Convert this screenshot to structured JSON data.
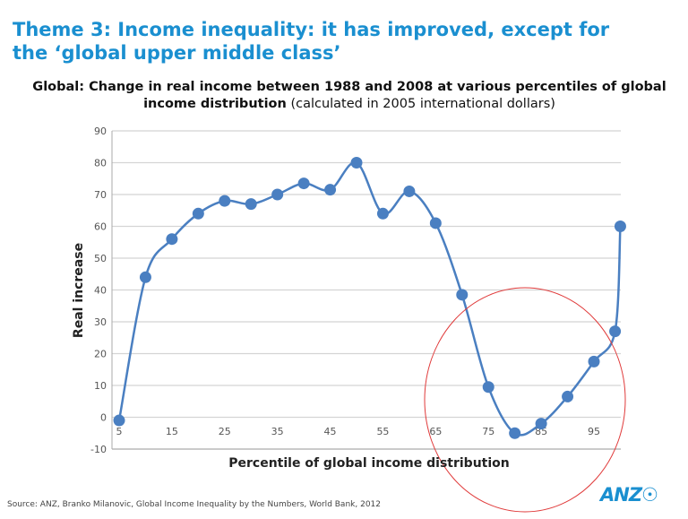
{
  "slide": {
    "title_line1": "Theme 3:  Income inequality:  it has improved, except for",
    "title_line2": "the ‘global upper middle class’",
    "source": "Source: ANZ, Branko Milanovic, Global Income Inequality by the Numbers, World Bank, 2012",
    "logo_text": "ANZ"
  },
  "chart_data": {
    "type": "line",
    "title_bold": "Global: Change in real income between 1988 and 2008 at various percentiles of global income distribution",
    "title_normal": "(calculated in 2005 international dollars)",
    "xlabel": "Percentile of global income distribution",
    "ylabel": "Real increase",
    "x": [
      5,
      10,
      15,
      20,
      25,
      30,
      35,
      40,
      45,
      50,
      55,
      60,
      65,
      70,
      75,
      80,
      85,
      90,
      95,
      99,
      100
    ],
    "y": [
      -1,
      44,
      56,
      64,
      68,
      67,
      70,
      73.5,
      71.5,
      80,
      64,
      71,
      61,
      38.5,
      9.5,
      -5,
      -2,
      6.5,
      17.5,
      27,
      60
    ],
    "xticks": [
      "5",
      "15",
      "25",
      "35",
      "45",
      "55",
      "65",
      "75",
      "85",
      "95"
    ],
    "xtick_values": [
      5,
      15,
      25,
      35,
      45,
      55,
      65,
      75,
      85,
      95
    ],
    "yticks": [
      90,
      80,
      70,
      60,
      50,
      40,
      30,
      20,
      10,
      0,
      -10
    ],
    "ylim": [
      -10,
      90
    ],
    "xlim": [
      5,
      100
    ],
    "grid": true,
    "smooth": true,
    "series_color": "#4a7fc1",
    "annotation": {
      "shape": "ellipse",
      "color": "#e03a3a",
      "center": [
        81,
        -4
      ],
      "note": "highlights 70-99th percentiles"
    }
  }
}
